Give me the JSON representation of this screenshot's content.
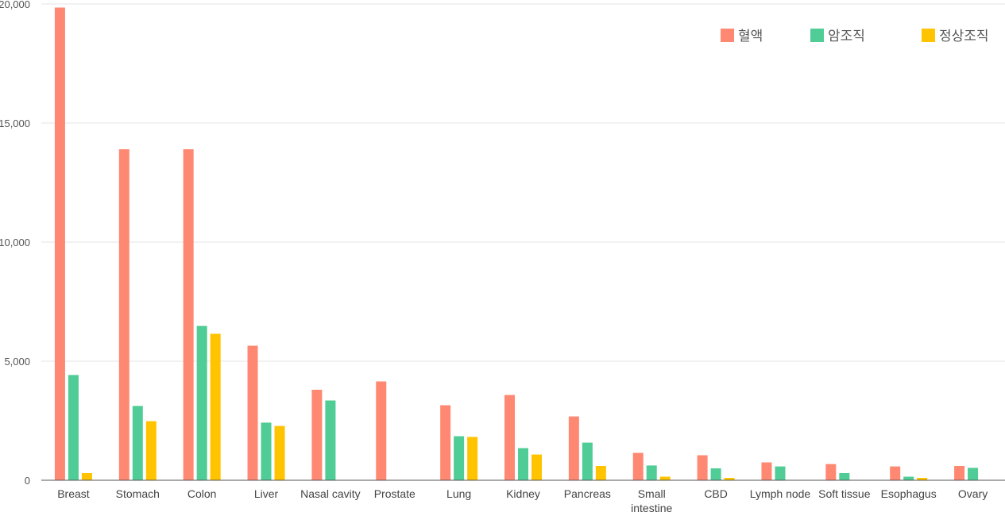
{
  "chart_data": {
    "type": "bar",
    "categories": [
      "Breast",
      "Stomach",
      "Colon",
      "Liver",
      "Nasal cavity",
      "Prostate",
      "Lung",
      "Kidney",
      "Pancreas",
      "Small intestine",
      "CBD",
      "Lymph node",
      "Soft tissue",
      "Esophagus",
      "Ovary"
    ],
    "category_lines": [
      [
        "Breast"
      ],
      [
        "Stomach"
      ],
      [
        "Colon"
      ],
      [
        "Liver"
      ],
      [
        "Nasal cavity"
      ],
      [
        "Prostate"
      ],
      [
        "Lung"
      ],
      [
        "Kidney"
      ],
      [
        "Pancreas"
      ],
      [
        "Small",
        "intestine"
      ],
      [
        "CBD"
      ],
      [
        "Lymph node"
      ],
      [
        "Soft tissue"
      ],
      [
        "Esophagus"
      ],
      [
        "Ovary"
      ]
    ],
    "series": [
      {
        "name": "혈액",
        "color": "#ff8873",
        "values": [
          19850,
          13900,
          13900,
          5650,
          3800,
          4150,
          3150,
          3580,
          2680,
          1150,
          1050,
          750,
          680,
          580,
          600
        ]
      },
      {
        "name": "암조직",
        "color": "#50cc96",
        "values": [
          4420,
          3120,
          6480,
          2420,
          3350,
          0,
          1850,
          1350,
          1580,
          620,
          500,
          580,
          300,
          150,
          520
        ]
      },
      {
        "name": "정상조직",
        "color": "#ffc300",
        "values": [
          300,
          2480,
          6150,
          2280,
          0,
          0,
          1820,
          1080,
          600,
          150,
          100,
          0,
          0,
          100,
          0
        ]
      }
    ],
    "ylim": [
      0,
      20000
    ],
    "yticks": [
      0,
      5000,
      10000,
      15000,
      20000
    ],
    "ytick_labels": [
      "0",
      "5,000",
      "10,000",
      "15,000",
      "20,000"
    ],
    "grid": true,
    "legend_position": "top-right",
    "title": "",
    "xlabel": "",
    "ylabel": ""
  }
}
